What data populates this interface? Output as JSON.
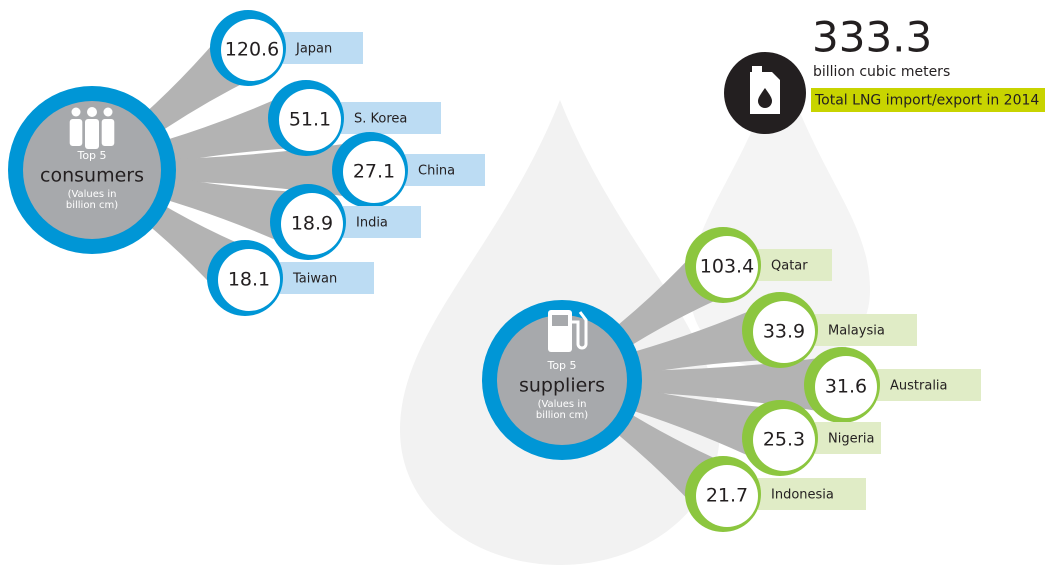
{
  "consumers": {
    "label": "Top 5",
    "title": "consumers",
    "note": [
      "(Values in",
      "billion cm)"
    ],
    "items": [
      {
        "value": 120.6,
        "name": "Japan"
      },
      {
        "value": 51.1,
        "name": "S. Korea"
      },
      {
        "value": 27.1,
        "name": "China"
      },
      {
        "value": 18.9,
        "name": "India"
      },
      {
        "value": 18.1,
        "name": "Taiwan"
      }
    ]
  },
  "suppliers": {
    "label": "Top 5",
    "title": "suppliers",
    "note": [
      "(Values in",
      "billion cm)"
    ],
    "items": [
      {
        "value": 103.4,
        "name": "Qatar"
      },
      {
        "value": 33.9,
        "name": "Malaysia"
      },
      {
        "value": 31.6,
        "name": "Australia"
      },
      {
        "value": 25.3,
        "name": "Nigeria"
      },
      {
        "value": 21.7,
        "name": "Indonesia"
      }
    ]
  },
  "total": {
    "value": 333.3,
    "unit": "billion cubic meters",
    "caption": "Total LNG import/export in 2014"
  }
}
